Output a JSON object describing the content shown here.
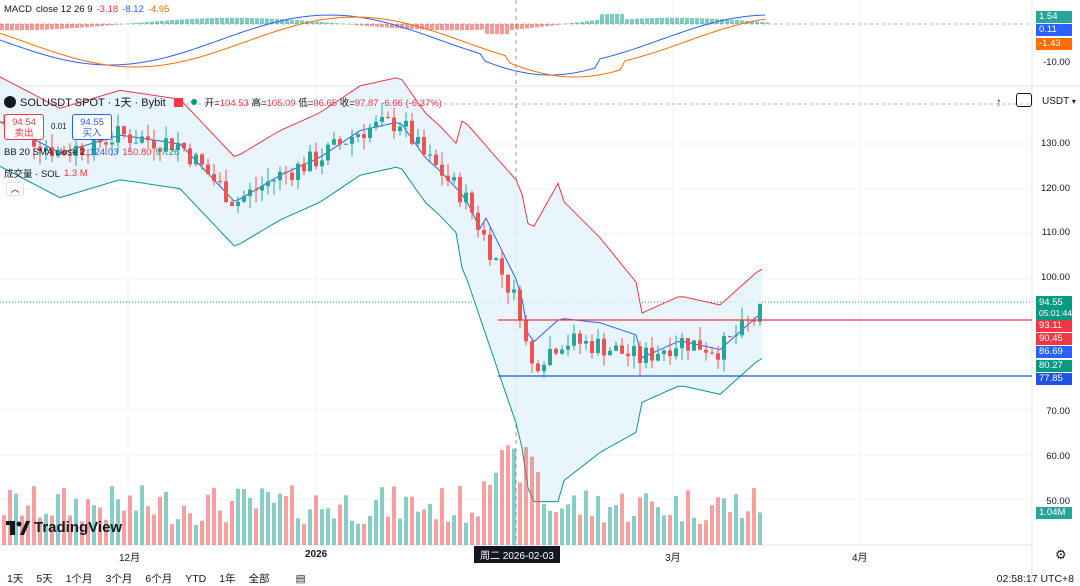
{
  "macd": {
    "name": "MACD",
    "params": "close 12 26 9",
    "hist": "-3.18",
    "macd": "-8.12",
    "signal": "-4.95"
  },
  "symbol": {
    "title": "SOLUSDT SPOT · 1天 · Bybit",
    "open_label": "开=",
    "open": "104.53",
    "high_label": "高=",
    "high": "105.09",
    "low_label": "低=",
    "low": "96.65",
    "close_label": "收=",
    "close": "97.87",
    "change": "-6.66 (-6.37%)"
  },
  "trade": {
    "sell_price": "94.54",
    "sell_label": "卖出",
    "spread": "0.01",
    "buy_price": "94.55",
    "buy_label": "买入"
  },
  "bb": {
    "name": "BB 20 SMA close 2",
    "mid": "124.03",
    "upper": "150.80",
    "lower": "97.26"
  },
  "volume": {
    "name": "成交量 · SOL",
    "value": "1.3 M"
  },
  "price_axis": {
    "currency": "USDT",
    "ticks": [
      "130.00",
      "120.00",
      "110.00",
      "100.00",
      "70.00",
      "60.00",
      "50.00"
    ],
    "macd_tick": "-10.00"
  },
  "tags": {
    "macd_hist": "1.54",
    "macd_line": "0.11",
    "macd_signal": "-1.43",
    "last_price": "94.55",
    "countdown": "05:01:44",
    "resistance": "93.11",
    "bb_upper": "90.45",
    "bb_mid": "86.69",
    "bb_lower": "80.27",
    "support": "77.85",
    "volume": "1.04M"
  },
  "time_axis": {
    "labels": [
      "12月",
      "2026",
      "3月",
      "4月"
    ],
    "crosshair": "周二 2026-02-03"
  },
  "bottom_bar": {
    "timeframes": [
      "1天",
      "5天",
      "1个月",
      "3个月",
      "6个月",
      "YTD",
      "1年",
      "全部"
    ],
    "clock": "02:58:17 UTC+8"
  },
  "brand": {
    "name": "TradingView"
  },
  "colors": {
    "up": "#26a69a",
    "down": "#ef5350",
    "resistance": "#f23645",
    "support": "#2962ff",
    "bb_fill": "#e3f2fd"
  }
}
